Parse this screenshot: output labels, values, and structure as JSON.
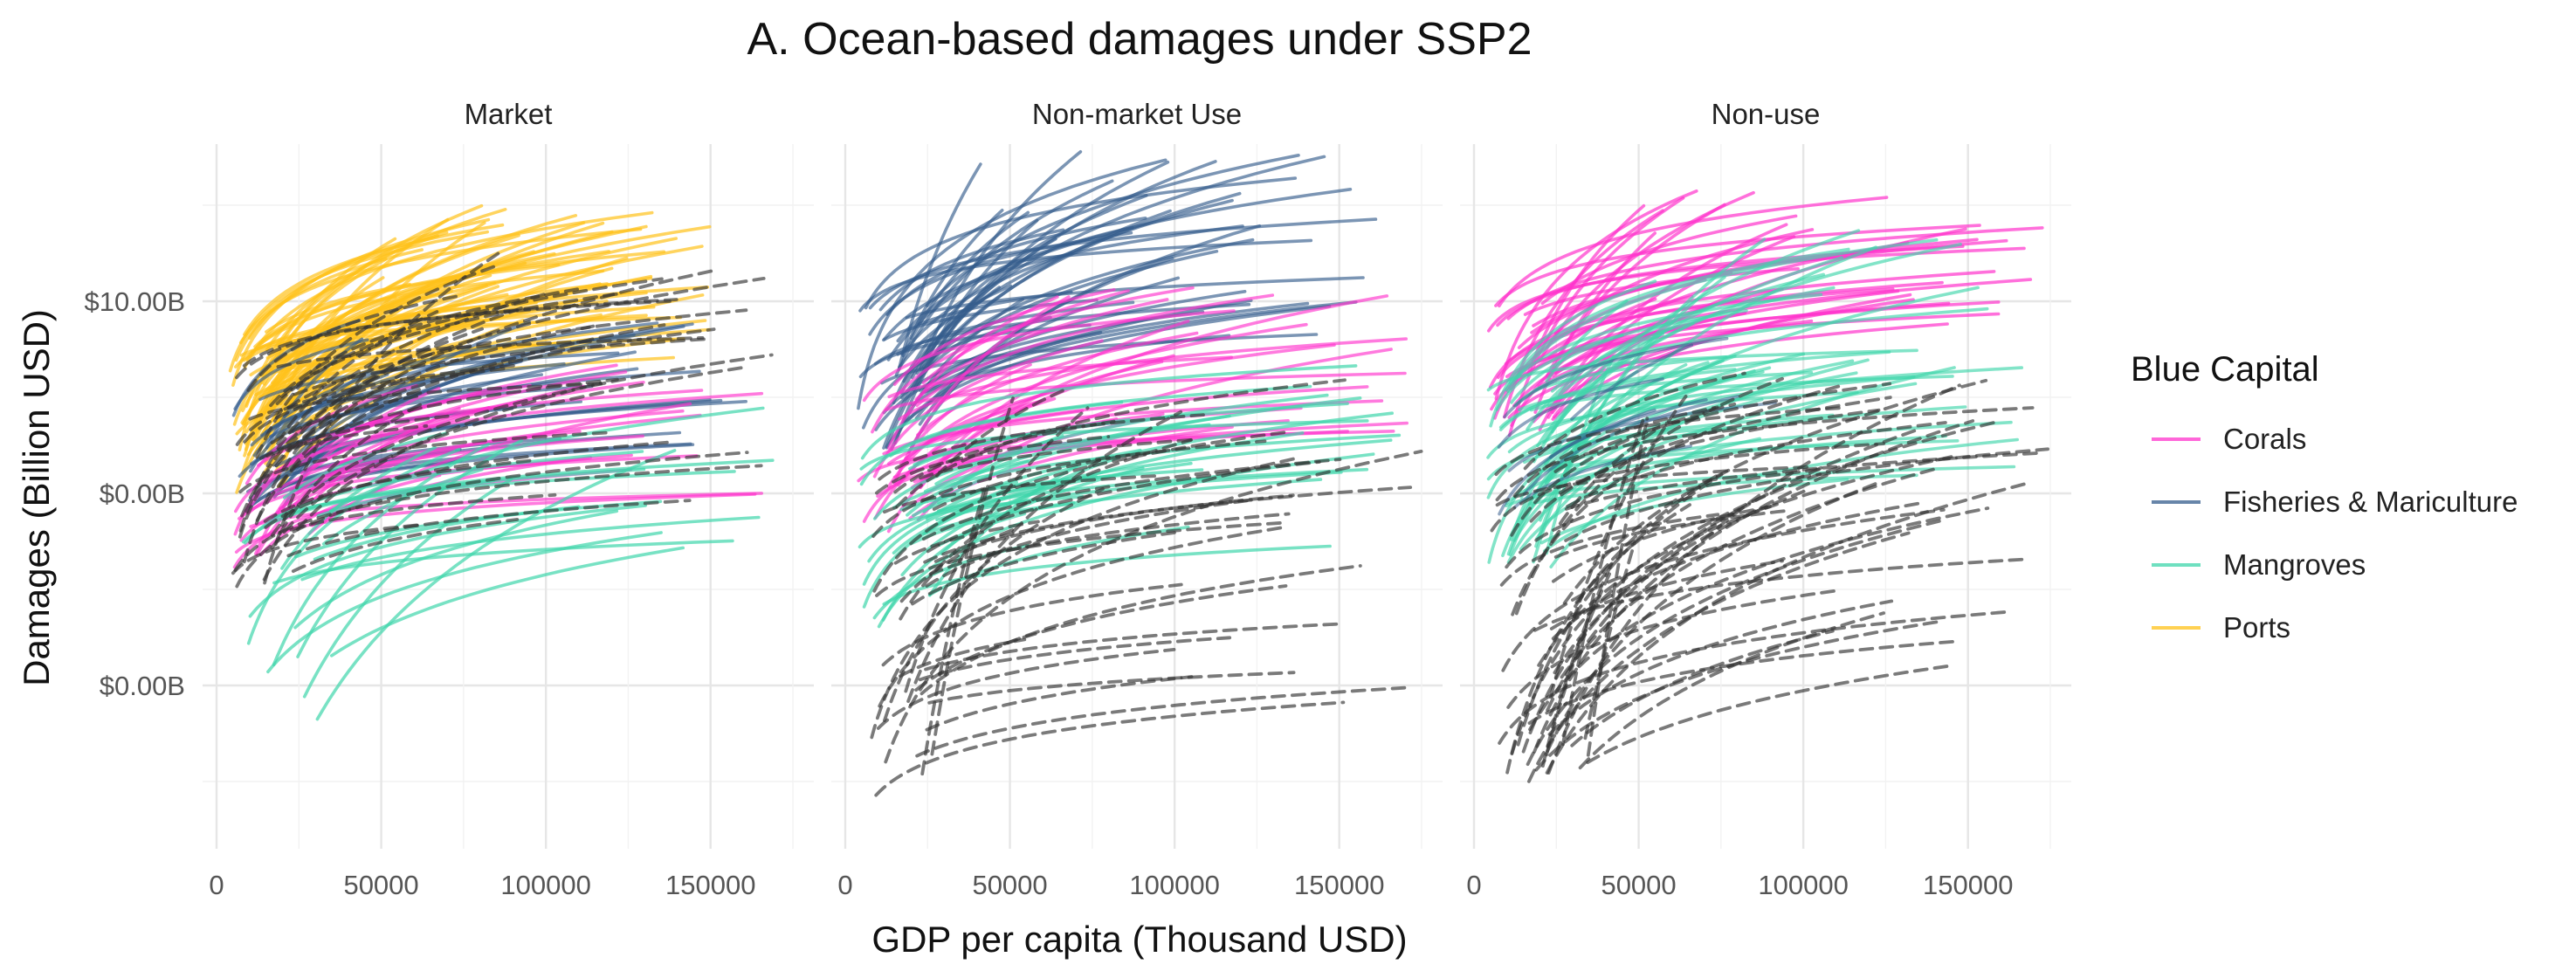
{
  "chart_data": {
    "type": "line",
    "title": "A. Ocean-based damages under SSP2",
    "xlabel": "GDP per capita (Thousand USD)",
    "ylabel": "Damages (Billion USD)",
    "x_ticks": [
      "0",
      "50000",
      "100000",
      "150000"
    ],
    "x_tick_values": [
      0,
      50000,
      100000,
      150000
    ],
    "y_ticks": [
      "$10.00B",
      "$0.00B",
      "$0.00B"
    ],
    "panels": [
      "Market",
      "Non-market Use",
      "Non-use"
    ],
    "legend": {
      "title": "Blue Capital",
      "position": "right",
      "items": [
        {
          "label": "Corals",
          "color": "#ff33cc"
        },
        {
          "label": "Fisheries & Mariculture",
          "color": "#345c8c"
        },
        {
          "label": "Mangroves",
          "color": "#3fd6ab"
        },
        {
          "label": "Ports",
          "color": "#ffc21a"
        }
      ]
    },
    "dashed_series_color": "#333333",
    "grid": true,
    "xlim": [
      0,
      175000
    ],
    "note": "Each series is a logarithmic damage curve per country; the three y-axis labels are as printed. Curve values are in y-axis tick units (1 = distance between adjacent labelled ticks, 0 = lowest labelled tick).",
    "series_groups": [
      {
        "panel": "Market",
        "groups": [
          {
            "type": "Ports",
            "color": "#ffc21a",
            "dashed": false,
            "opacity": 0.7,
            "count": 70,
            "x_start_range": [
              4000,
              20000
            ],
            "x_end_range": [
              50000,
              150000
            ],
            "y_start_range": [
              1.0,
              1.9
            ],
            "y_end_range": [
              1.7,
              2.5
            ]
          },
          {
            "type": "Fisheries & Mariculture",
            "color": "#345c8c",
            "dashed": false,
            "opacity": 0.65,
            "count": 35,
            "x_start_range": [
              4000,
              25000
            ],
            "x_end_range": [
              40000,
              170000
            ],
            "y_start_range": [
              0.9,
              1.5
            ],
            "y_end_range": [
              1.1,
              1.9
            ]
          },
          {
            "type": "Corals",
            "color": "#ff33cc",
            "dashed": false,
            "opacity": 0.65,
            "count": 25,
            "x_start_range": [
              5000,
              30000
            ],
            "x_end_range": [
              60000,
              170000
            ],
            "y_start_range": [
              0.6,
              1.2
            ],
            "y_end_range": [
              0.8,
              1.7
            ]
          },
          {
            "type": "Mangroves",
            "color": "#3fd6ab",
            "dashed": false,
            "opacity": 0.7,
            "count": 22,
            "x_start_range": [
              5000,
              35000
            ],
            "x_end_range": [
              50000,
              170000
            ],
            "y_start_range": [
              -0.2,
              1.0
            ],
            "y_end_range": [
              0.6,
              1.3
            ]
          },
          {
            "type": "Other",
            "color": "#333333",
            "dashed": true,
            "opacity": 0.65,
            "count": 40,
            "x_start_range": [
              5000,
              25000
            ],
            "x_end_range": [
              60000,
              175000
            ],
            "y_start_range": [
              0.5,
              1.8
            ],
            "y_end_range": [
              0.7,
              2.3
            ]
          }
        ]
      },
      {
        "panel": "Non-market Use",
        "groups": [
          {
            "type": "Fisheries & Mariculture",
            "color": "#345c8c",
            "dashed": false,
            "opacity": 0.65,
            "count": 50,
            "x_start_range": [
              3000,
              25000
            ],
            "x_end_range": [
              40000,
              165000
            ],
            "y_start_range": [
              1.2,
              2.0
            ],
            "y_end_range": [
              1.8,
              2.8
            ]
          },
          {
            "type": "Corals",
            "color": "#ff33cc",
            "dashed": false,
            "opacity": 0.65,
            "count": 35,
            "x_start_range": [
              4000,
              25000
            ],
            "x_end_range": [
              50000,
              175000
            ],
            "y_start_range": [
              0.8,
              1.6
            ],
            "y_end_range": [
              1.3,
              2.1
            ]
          },
          {
            "type": "Mangroves",
            "color": "#3fd6ab",
            "dashed": false,
            "opacity": 0.7,
            "count": 35,
            "x_start_range": [
              4000,
              30000
            ],
            "x_end_range": [
              50000,
              175000
            ],
            "y_start_range": [
              0.3,
              1.2
            ],
            "y_end_range": [
              0.7,
              1.5
            ]
          },
          {
            "type": "Other",
            "color": "#333333",
            "dashed": true,
            "opacity": 0.65,
            "count": 40,
            "x_start_range": [
              8000,
              30000
            ],
            "x_end_range": [
              40000,
              175000
            ],
            "y_start_range": [
              -0.7,
              1.1
            ],
            "y_end_range": [
              -0.3,
              1.6
            ]
          }
        ]
      },
      {
        "panel": "Non-use",
        "groups": [
          {
            "type": "Corals",
            "color": "#ff33cc",
            "dashed": false,
            "opacity": 0.7,
            "count": 40,
            "x_start_range": [
              4000,
              25000
            ],
            "x_end_range": [
              50000,
              175000
            ],
            "y_start_range": [
              1.3,
              2.0
            ],
            "y_end_range": [
              1.8,
              2.6
            ]
          },
          {
            "type": "Mangroves",
            "color": "#3fd6ab",
            "dashed": false,
            "opacity": 0.65,
            "count": 55,
            "x_start_range": [
              4000,
              25000
            ],
            "x_end_range": [
              40000,
              170000
            ],
            "y_start_range": [
              0.6,
              1.6
            ],
            "y_end_range": [
              0.9,
              2.4
            ]
          },
          {
            "type": "Fisheries & Mariculture",
            "color": "#345c8c",
            "dashed": false,
            "opacity": 0.55,
            "count": 8,
            "x_start_range": [
              5000,
              30000
            ],
            "x_end_range": [
              50000,
              110000
            ],
            "y_start_range": [
              0.8,
              1.4
            ],
            "y_end_range": [
              1.0,
              1.6
            ]
          },
          {
            "type": "Other",
            "color": "#333333",
            "dashed": true,
            "opacity": 0.65,
            "count": 55,
            "x_start_range": [
              5000,
              35000
            ],
            "x_end_range": [
              40000,
              175000
            ],
            "y_start_range": [
              -0.5,
              1.2
            ],
            "y_end_range": [
              0.1,
              1.6
            ]
          }
        ]
      }
    ]
  }
}
